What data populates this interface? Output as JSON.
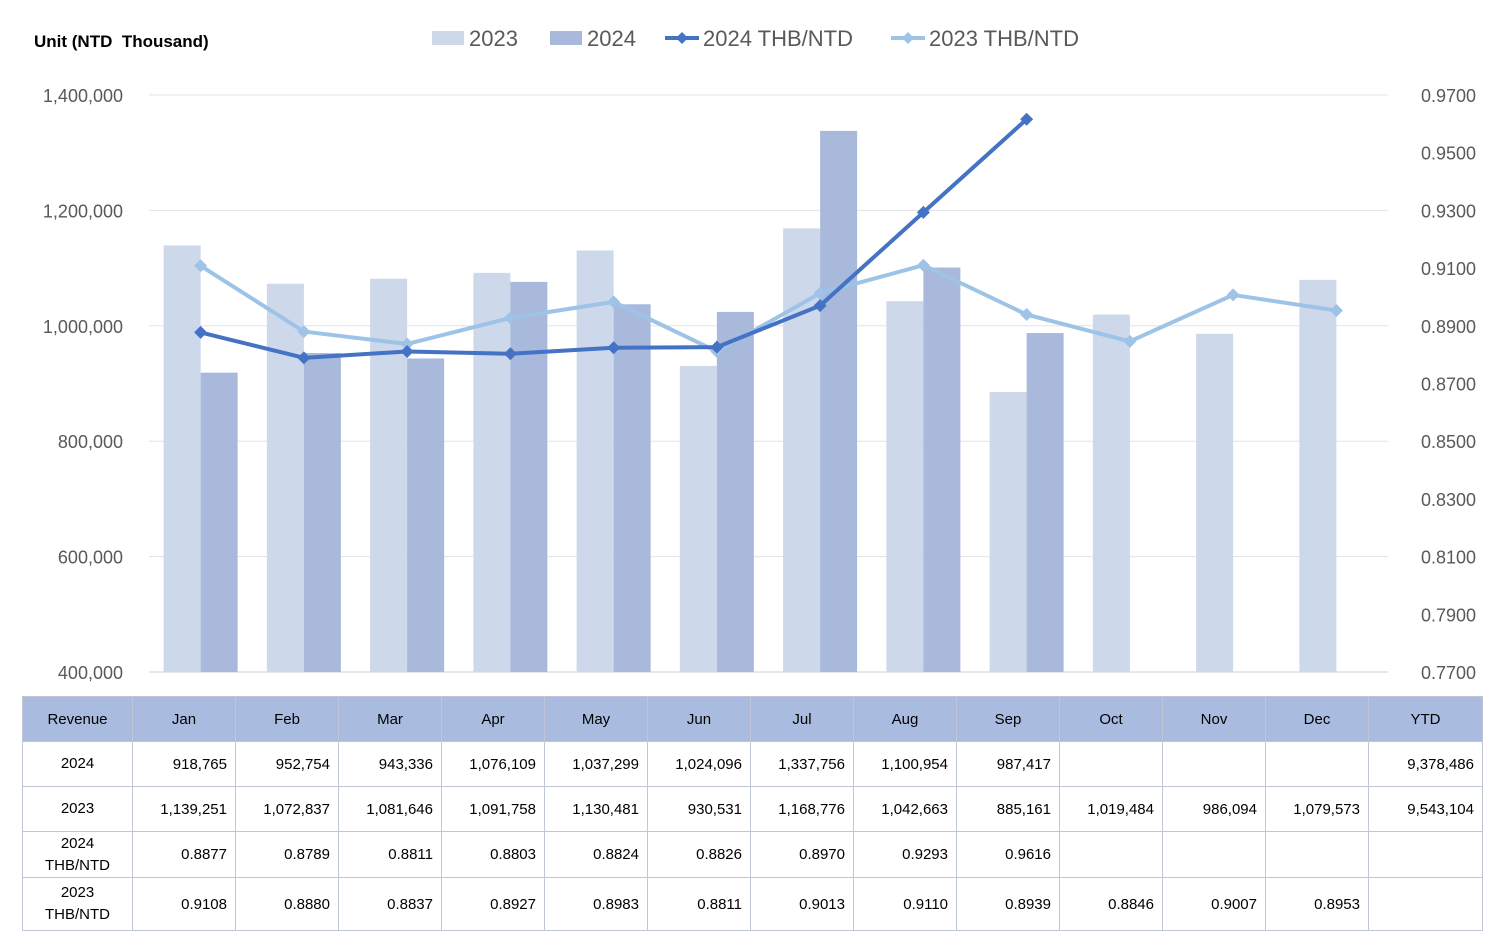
{
  "unit_label": "Unit (NTD  Thousand)",
  "chart_data": {
    "type": "bar",
    "categories": [
      "Jan",
      "Feb",
      "Mar",
      "Apr",
      "May",
      "Jun",
      "Jul",
      "Aug",
      "Sep",
      "Oct",
      "Nov",
      "Dec"
    ],
    "bar_series": [
      {
        "name": "2023",
        "color": "#cdd8ea",
        "values": [
          1139251,
          1072837,
          1081646,
          1091758,
          1130481,
          930531,
          1168776,
          1042663,
          885161,
          1019484,
          986094,
          1079573
        ]
      },
      {
        "name": "2024",
        "color": "#a8b9dc",
        "values": [
          918765,
          952754,
          943336,
          1076109,
          1037299,
          1024096,
          1337756,
          1100954,
          987417,
          null,
          null,
          null
        ]
      }
    ],
    "line_series": [
      {
        "name": "2024 THB/NTD",
        "color": "#4472c4",
        "axis": "right",
        "values": [
          0.8877,
          0.8789,
          0.8811,
          0.8803,
          0.8824,
          0.8826,
          0.897,
          0.9293,
          0.9616,
          null,
          null,
          null
        ]
      },
      {
        "name": "2023 THB/NTD",
        "color": "#9dc3e6",
        "axis": "right",
        "values": [
          0.9108,
          0.888,
          0.8837,
          0.8927,
          0.8983,
          0.8811,
          0.9013,
          0.911,
          0.8939,
          0.8846,
          0.9007,
          0.8953
        ]
      }
    ],
    "legend_order": [
      "2023",
      "2024",
      "2024 THB/NTD",
      "2023 THB/NTD"
    ],
    "legend_position": "top-center",
    "ylim_left": [
      400000,
      1400000
    ],
    "yticks_left": [
      "400,000",
      "600,000",
      "800,000",
      "1,000,000",
      "1,200,000",
      "1,400,000"
    ],
    "ylim_right": [
      0.77,
      0.97
    ],
    "yticks_right": [
      "0.7700",
      "0.7900",
      "0.8100",
      "0.8300",
      "0.8500",
      "0.8700",
      "0.8900",
      "0.9100",
      "0.9300",
      "0.9500",
      "0.9700"
    ],
    "grid": true
  },
  "table": {
    "header": [
      "Revenue",
      "Jan",
      "Feb",
      "Mar",
      "Apr",
      "May",
      "Jun",
      "Jul",
      "Aug",
      "Sep",
      "Oct",
      "Nov",
      "Dec",
      "YTD"
    ],
    "rows": [
      {
        "label": "2024",
        "cells": [
          "918,765",
          "952,754",
          "943,336",
          "1,076,109",
          "1,037,299",
          "1,024,096",
          "1,337,756",
          "1,100,954",
          "987,417",
          "",
          "",
          "",
          "9,378,486"
        ]
      },
      {
        "label": "2023",
        "cells": [
          "1,139,251",
          "1,072,837",
          "1,081,646",
          "1,091,758",
          "1,130,481",
          "930,531",
          "1,168,776",
          "1,042,663",
          "885,161",
          "1,019,484",
          "986,094",
          "1,079,573",
          "9,543,104"
        ]
      },
      {
        "label": "2024 THB/NTD",
        "cells": [
          "0.8877",
          "0.8789",
          "0.8811",
          "0.8803",
          "0.8824",
          "0.8826",
          "0.8970",
          "0.9293",
          "0.9616",
          "",
          "",
          "",
          ""
        ]
      },
      {
        "label": "2023 THB/NTD",
        "cells": [
          "0.9108",
          "0.8880",
          "0.8837",
          "0.8927",
          "0.8983",
          "0.8811",
          "0.9013",
          "0.9110",
          "0.8939",
          "0.8846",
          "0.9007",
          "0.8953",
          ""
        ]
      }
    ]
  }
}
